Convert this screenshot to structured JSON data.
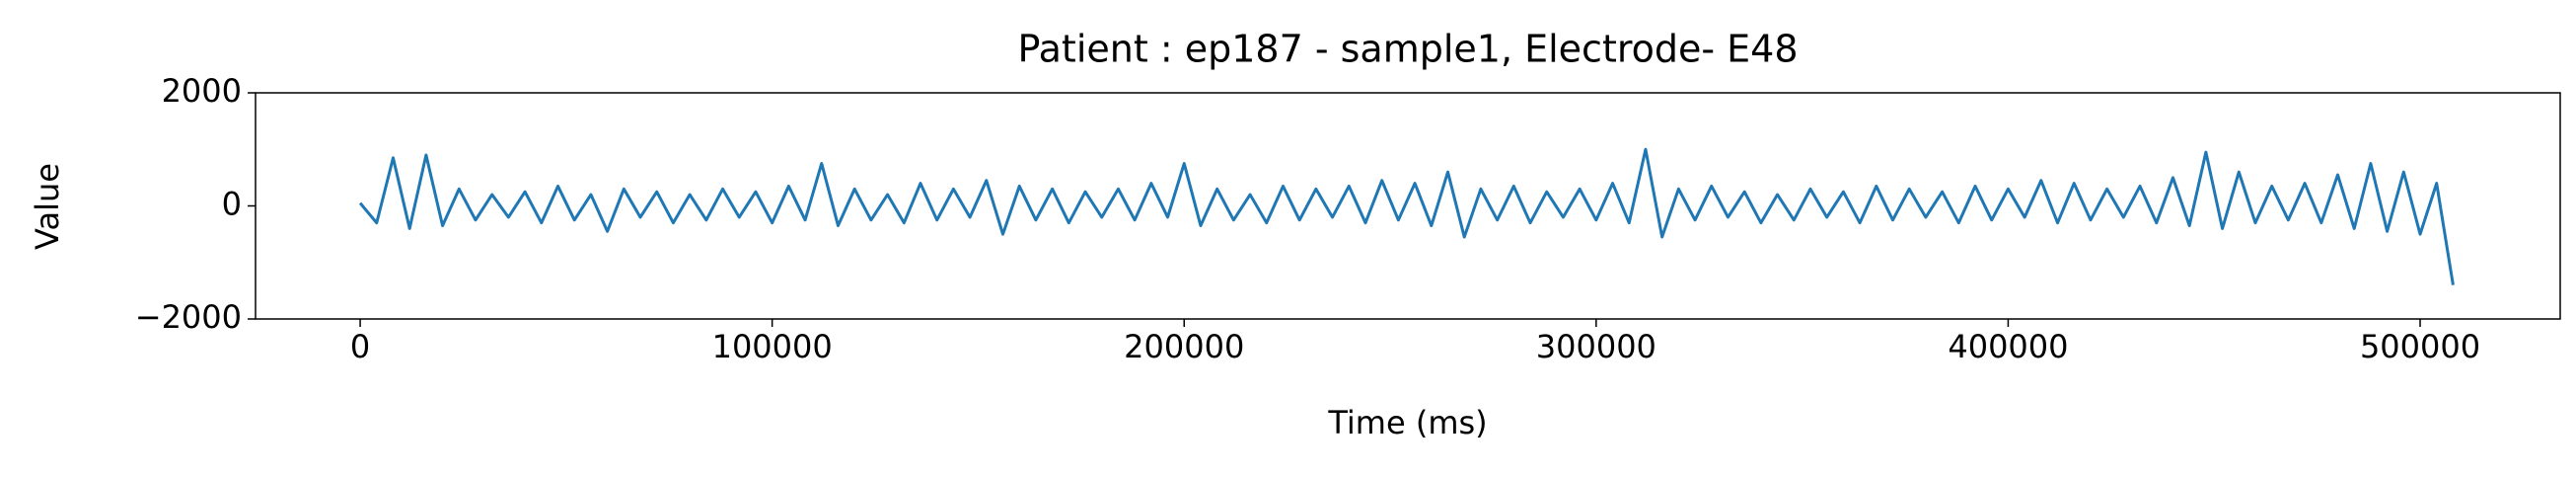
{
  "chart_data": {
    "type": "line",
    "title": "Patient : ep187 - sample1, Electrode- E48",
    "xlabel": "Time (ms)",
    "ylabel": "Value",
    "xlim": [
      -25400,
      534000
    ],
    "ylim": [
      -2000,
      2000
    ],
    "xticks": [
      0,
      100000,
      200000,
      300000,
      400000,
      500000
    ],
    "yticks": [
      {
        "value": -2000,
        "label": "−2000"
      },
      0,
      2000
    ],
    "series": [
      {
        "name": "E48",
        "color": "#1f77b4",
        "x": [
          0,
          4000,
          8000,
          12000,
          16000,
          20000,
          24000,
          28000,
          32000,
          36000,
          40000,
          44000,
          48000,
          52000,
          56000,
          60000,
          64000,
          68000,
          72000,
          76000,
          80000,
          84000,
          88000,
          92000,
          96000,
          100000,
          104000,
          108000,
          112000,
          116000,
          120000,
          124000,
          128000,
          132000,
          136000,
          140000,
          144000,
          148000,
          152000,
          156000,
          160000,
          164000,
          168000,
          172000,
          176000,
          180000,
          184000,
          188000,
          192000,
          196000,
          200000,
          204000,
          208000,
          212000,
          216000,
          220000,
          224000,
          228000,
          232000,
          236000,
          240000,
          244000,
          248000,
          252000,
          256000,
          260000,
          264000,
          268000,
          272000,
          276000,
          280000,
          284000,
          288000,
          292000,
          296000,
          300000,
          304000,
          308000,
          312000,
          316000,
          320000,
          324000,
          328000,
          332000,
          336000,
          340000,
          344000,
          348000,
          352000,
          356000,
          360000,
          364000,
          368000,
          372000,
          376000,
          380000,
          384000,
          388000,
          392000,
          396000,
          400000,
          404000,
          408000,
          412000,
          416000,
          420000,
          424000,
          428000,
          432000,
          436000,
          440000,
          444000,
          448000,
          452000,
          456000,
          460000,
          464000,
          468000,
          472000,
          476000,
          480000,
          484000,
          488000,
          492000,
          496000,
          500000,
          504000,
          508000
        ],
        "values": [
          50,
          -300,
          850,
          -400,
          900,
          -350,
          300,
          -250,
          200,
          -200,
          250,
          -300,
          350,
          -250,
          200,
          -450,
          300,
          -200,
          250,
          -300,
          200,
          -250,
          300,
          -200,
          250,
          -300,
          350,
          -250,
          750,
          -350,
          300,
          -250,
          200,
          -300,
          400,
          -250,
          300,
          -200,
          450,
          -500,
          350,
          -250,
          300,
          -300,
          250,
          -200,
          300,
          -250,
          400,
          -200,
          750,
          -350,
          300,
          -250,
          200,
          -300,
          350,
          -250,
          300,
          -200,
          350,
          -300,
          450,
          -250,
          400,
          -350,
          600,
          -550,
          300,
          -250,
          350,
          -300,
          250,
          -200,
          300,
          -250,
          400,
          -300,
          1000,
          -550,
          300,
          -250,
          350,
          -200,
          250,
          -300,
          200,
          -250,
          300,
          -200,
          250,
          -300,
          350,
          -250,
          300,
          -200,
          250,
          -300,
          350,
          -250,
          300,
          -200,
          450,
          -300,
          400,
          -250,
          300,
          -200,
          350,
          -300,
          500,
          -350,
          950,
          -400,
          600,
          -300,
          350,
          -250,
          400,
          -300,
          550,
          -400,
          750,
          -450,
          600,
          -500,
          400,
          -1400
        ]
      }
    ]
  }
}
